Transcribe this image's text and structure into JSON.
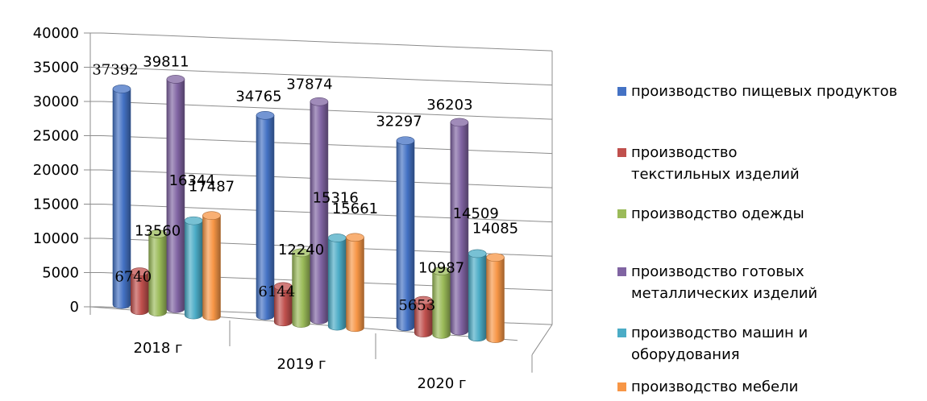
{
  "chart_data": {
    "type": "bar",
    "categories": [
      "2018 г",
      "2019 г",
      "2020 г"
    ],
    "ylim": [
      0,
      40000
    ],
    "yticks": [
      "0",
      "5000",
      "10000",
      "15000",
      "20000",
      "25000",
      "30000",
      "35000",
      "40000"
    ],
    "grid": true,
    "legend_position": "right",
    "series": [
      {
        "name": "производство пищевых продуктов",
        "color": "#4472c4",
        "values": [
          37392,
          34765,
          32297
        ],
        "labels": [
          "37392",
          "34765",
          "32297"
        ]
      },
      {
        "name": "производство текстильных изделий",
        "color": "#c0504d",
        "values": [
          6740,
          6144,
          5653
        ],
        "labels": [
          "6740",
          "6144",
          "5653"
        ]
      },
      {
        "name": "производство одежды",
        "color": "#9bbb59",
        "values": [
          13560,
          12240,
          10987
        ],
        "labels": [
          "13560",
          "12240",
          "10987"
        ]
      },
      {
        "name": "производство готовых металлических изделий",
        "color": "#8064a2",
        "values": [
          39811,
          37874,
          36203
        ],
        "labels": [
          "39811",
          "37874",
          "36203"
        ]
      },
      {
        "name": "производство машин и оборудования",
        "color": "#4bacc6",
        "values": [
          16344,
          15316,
          14509
        ],
        "labels": [
          "16344",
          "15316",
          "14509"
        ]
      },
      {
        "name": "производство мебели",
        "color": "#f79646",
        "values": [
          17487,
          15661,
          14085
        ],
        "labels": [
          "17487",
          "15661",
          "14085"
        ]
      }
    ]
  }
}
